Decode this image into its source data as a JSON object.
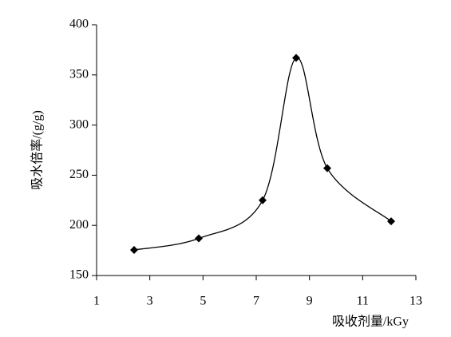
{
  "chart_data": {
    "type": "line",
    "x_label": "吸收剂量/kGy",
    "y_label": "吸水倍率/(g/g)",
    "x": [
      2.41,
      4.84,
      7.24,
      8.5,
      9.67,
      12.07
    ],
    "series": [
      {
        "values": [
          175.5,
          187,
          225,
          367,
          257,
          204
        ],
        "color": "#000000"
      }
    ],
    "xlim": [
      1,
      13
    ],
    "xticks": [
      1,
      3,
      5,
      7,
      9,
      11,
      13
    ],
    "ylim": [
      150,
      400
    ],
    "yticks": [
      150,
      200,
      250,
      300,
      350,
      400
    ],
    "smooth": true,
    "marker": "diamond",
    "grid": false
  }
}
